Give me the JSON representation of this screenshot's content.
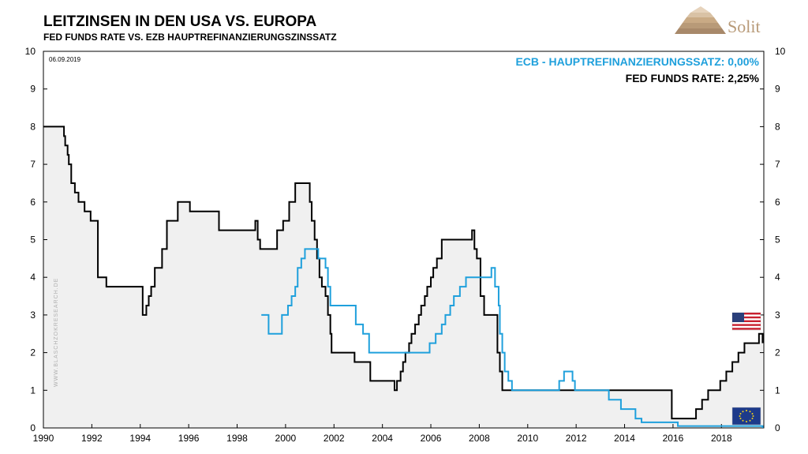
{
  "header": {
    "title": "LEITZINSEN IN DEN USA VS. EUROPA",
    "subtitle": "FED FUNDS RATE  VS.  EZB HAUPTREFINANZIERUNGSZINSSATZ",
    "date": "06.09.2019",
    "watermark": "WWW.BLASCHZOKRESEARCH.DE"
  },
  "logo": {
    "text": "Solit",
    "color": "#b89a78"
  },
  "icons": {
    "us": "us-flag-icon",
    "eu": "eu-flag-icon",
    "logo": "pyramid-icon"
  },
  "legend": {
    "ecb": "ECB - HAUPTREFINANZIERUNGSSATZ: 0,00%",
    "fed": "FED FUNDS RATE: 2,25%"
  },
  "colors": {
    "fed": "#000000",
    "ecb": "#1fa0dc",
    "fill": "#f0f0f0"
  },
  "chart_data": {
    "type": "line",
    "title": "LEITZINSEN IN DEN USA VS. EUROPA",
    "subtitle": "FED FUNDS RATE  VS.  EZB HAUPTREFINANZIERUNGSZINSSATZ",
    "xlim": [
      1990,
      2019.75
    ],
    "ylim": [
      0,
      10
    ],
    "yticks": [
      0,
      1,
      2,
      3,
      4,
      5,
      6,
      7,
      8,
      9,
      10
    ],
    "xticks": [
      1990,
      1992,
      1994,
      1996,
      1998,
      2000,
      2002,
      2004,
      2006,
      2008,
      2010,
      2012,
      2014,
      2016,
      2018
    ],
    "grid": false,
    "legend_position": "top-right",
    "step": true,
    "series": [
      {
        "name": "FED FUNDS RATE",
        "color": "#000000",
        "area_fill": true,
        "x": [
          1990.0,
          1990.85,
          1990.9,
          1991.0,
          1991.05,
          1991.15,
          1991.3,
          1991.45,
          1991.7,
          1991.95,
          1992.25,
          1992.6,
          1994.1,
          1994.25,
          1994.35,
          1994.45,
          1994.6,
          1994.9,
          1995.1,
          1995.55,
          1996.05,
          1997.25,
          1998.75,
          1998.85,
          1998.95,
          1999.45,
          1999.65,
          1999.9,
          2000.15,
          2000.4,
          2001.0,
          2001.08,
          2001.2,
          2001.3,
          2001.4,
          2001.5,
          2001.65,
          2001.75,
          2001.85,
          2001.9,
          2002.85,
          2003.5,
          2004.5,
          2004.6,
          2004.75,
          2004.85,
          2004.95,
          2005.1,
          2005.2,
          2005.35,
          2005.5,
          2005.6,
          2005.75,
          2005.85,
          2006.0,
          2006.1,
          2006.25,
          2006.45,
          2007.7,
          2007.8,
          2007.9,
          2008.05,
          2008.2,
          2008.75,
          2008.85,
          2008.95,
          2015.95,
          2016.95,
          2017.2,
          2017.45,
          2017.95,
          2018.2,
          2018.45,
          2018.7,
          2018.95,
          2019.55,
          2019.7
        ],
        "y": [
          8.0,
          7.75,
          7.5,
          7.25,
          7.0,
          6.5,
          6.25,
          6.0,
          5.75,
          5.5,
          4.0,
          3.75,
          3.0,
          3.25,
          3.5,
          3.75,
          4.25,
          4.75,
          5.5,
          6.0,
          5.75,
          5.25,
          5.5,
          5.0,
          4.75,
          4.75,
          5.25,
          5.5,
          6.0,
          6.5,
          6.0,
          5.5,
          5.0,
          4.5,
          4.0,
          3.75,
          3.5,
          3.0,
          2.5,
          2.0,
          1.75,
          1.25,
          1.0,
          1.25,
          1.5,
          1.75,
          2.0,
          2.25,
          2.5,
          2.75,
          3.0,
          3.25,
          3.5,
          3.75,
          4.0,
          4.25,
          4.5,
          5.0,
          5.25,
          4.75,
          4.5,
          3.5,
          3.0,
          2.0,
          1.5,
          1.0,
          0.25,
          0.5,
          0.75,
          1.0,
          1.25,
          1.5,
          1.75,
          2.0,
          2.25,
          2.5,
          2.25
        ]
      },
      {
        "name": "ECB - HAUPTREFINANZIERUNGSSATZ",
        "color": "#1fa0dc",
        "area_fill": false,
        "x": [
          1999.0,
          1999.3,
          1999.85,
          2000.1,
          2000.25,
          2000.4,
          2000.5,
          2000.65,
          2000.8,
          2001.35,
          2001.65,
          2001.75,
          2001.85,
          2002.9,
          2003.2,
          2003.45,
          2005.95,
          2006.2,
          2006.45,
          2006.6,
          2006.8,
          2006.95,
          2007.2,
          2007.45,
          2008.5,
          2008.65,
          2008.8,
          2008.85,
          2008.95,
          2009.05,
          2009.2,
          2009.35,
          2011.3,
          2011.5,
          2011.85,
          2011.95,
          2013.35,
          2013.85,
          2014.45,
          2014.7,
          2016.2,
          2019.7
        ],
        "y": [
          3.0,
          2.5,
          3.0,
          3.25,
          3.5,
          3.75,
          4.25,
          4.5,
          4.75,
          4.5,
          4.25,
          3.75,
          3.25,
          2.75,
          2.5,
          2.0,
          2.25,
          2.5,
          2.75,
          3.0,
          3.25,
          3.5,
          3.75,
          4.0,
          4.25,
          3.75,
          3.25,
          2.5,
          2.0,
          1.5,
          1.25,
          1.0,
          1.25,
          1.5,
          1.25,
          1.0,
          0.75,
          0.5,
          0.25,
          0.15,
          0.05,
          0.0
        ]
      }
    ]
  }
}
